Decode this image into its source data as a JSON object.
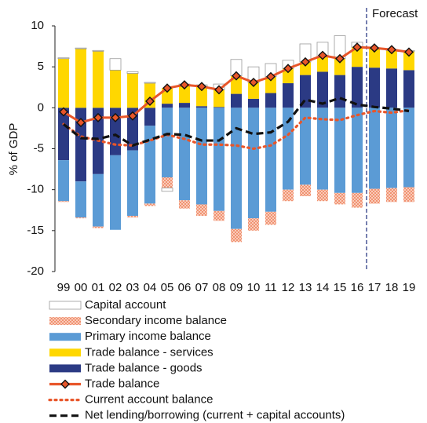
{
  "chart_data": {
    "type": "bar",
    "stacked": true,
    "y_label": "% of GDP",
    "annotation": "Forecast",
    "categories": [
      "99",
      "00",
      "01",
      "02",
      "03",
      "04",
      "05",
      "06",
      "07",
      "08",
      "09",
      "10",
      "11",
      "12",
      "13",
      "14",
      "15",
      "16",
      "17",
      "18",
      "19"
    ],
    "ylim": [
      -20,
      10
    ],
    "yticks": [
      -20,
      -15,
      -10,
      -5,
      0,
      5,
      10
    ],
    "series": [
      {
        "name": "Trade balance - goods",
        "kind": "bar",
        "color": "#2b3a84",
        "values": [
          -6.4,
          -9.0,
          -8.1,
          -5.8,
          -5.2,
          -2.2,
          0.5,
          0.6,
          0.2,
          0.1,
          1.7,
          1.1,
          1.8,
          3.0,
          4.0,
          4.4,
          4.0,
          5.0,
          4.9,
          4.8,
          4.6
        ]
      },
      {
        "name": "Trade balance - services",
        "kind": "bar",
        "color": "#ffd700",
        "values": [
          6.0,
          7.2,
          6.9,
          4.6,
          4.2,
          3.0,
          1.9,
          2.2,
          2.4,
          2.1,
          2.2,
          2.0,
          2.0,
          1.8,
          1.6,
          1.8,
          2.0,
          2.4,
          2.3,
          2.2,
          2.3
        ]
      },
      {
        "name": "Primary income balance",
        "kind": "bar",
        "color": "#5b9bd5",
        "values": [
          -5.0,
          -4.4,
          -6.4,
          -9.1,
          -8.0,
          -9.5,
          -8.5,
          -11.3,
          -11.8,
          -12.6,
          -14.8,
          -13.5,
          -12.7,
          -10.0,
          -9.4,
          -10.0,
          -10.4,
          -10.4,
          -9.9,
          -9.8,
          -9.7
        ]
      },
      {
        "name": "Secondary income balance",
        "kind": "bar",
        "color": "#f08c6a",
        "pattern": "crosshatch",
        "values": [
          -0.1,
          -0.1,
          -0.2,
          0,
          -0.2,
          -0.3,
          -1.3,
          -1.0,
          -1.4,
          -1.2,
          -1.6,
          -1.5,
          -1.6,
          -1.4,
          -1.4,
          -1.4,
          -1.4,
          -1.8,
          -1.8,
          -1.7,
          -1.8
        ]
      },
      {
        "name": "Capital account",
        "kind": "bar",
        "color": "#ffffff",
        "stroke": "#9a9a9a",
        "values": [
          0.1,
          0.1,
          0.1,
          1.4,
          0.2,
          0.1,
          -0.4,
          0.1,
          0.2,
          0.7,
          2.0,
          1.9,
          1.6,
          1.0,
          2.2,
          1.8,
          2.8,
          0.6,
          0.1,
          0.1,
          0.1
        ]
      },
      {
        "name": "Trade balance",
        "kind": "line",
        "style": "solid",
        "marker": "diamond",
        "color": "#e8562a",
        "values": [
          -0.5,
          -1.8,
          -1.2,
          -1.2,
          -1.0,
          0.8,
          2.4,
          2.8,
          2.6,
          2.2,
          3.9,
          3.1,
          3.8,
          4.8,
          5.6,
          6.4,
          6.0,
          7.4,
          7.3,
          7.1,
          6.8
        ]
      },
      {
        "name": "Current account balance",
        "kind": "line",
        "style": "dotted",
        "color": "#e8562a",
        "values": [
          -2.0,
          -3.5,
          -4.0,
          -4.5,
          -4.6,
          -4.0,
          -3.3,
          -3.8,
          -4.5,
          -4.5,
          -4.6,
          -5.0,
          -4.6,
          -3.3,
          -1.2,
          -1.4,
          -1.5,
          -0.9,
          -0.4,
          -0.6,
          -0.3
        ]
      },
      {
        "name": "Net lending/borrowing (current + capital accounts)",
        "kind": "line",
        "style": "dashed",
        "color": "#111111",
        "values": [
          -2.0,
          -3.7,
          -3.8,
          -3.3,
          -4.6,
          -3.9,
          -3.2,
          -3.3,
          -4.0,
          -4.0,
          -2.5,
          -3.2,
          -3.0,
          -1.7,
          1.0,
          0.5,
          1.2,
          0.4,
          0.1,
          -0.1,
          -0.4
        ]
      }
    ],
    "legend_order": [
      4,
      3,
      2,
      1,
      0,
      5,
      6,
      7
    ]
  }
}
